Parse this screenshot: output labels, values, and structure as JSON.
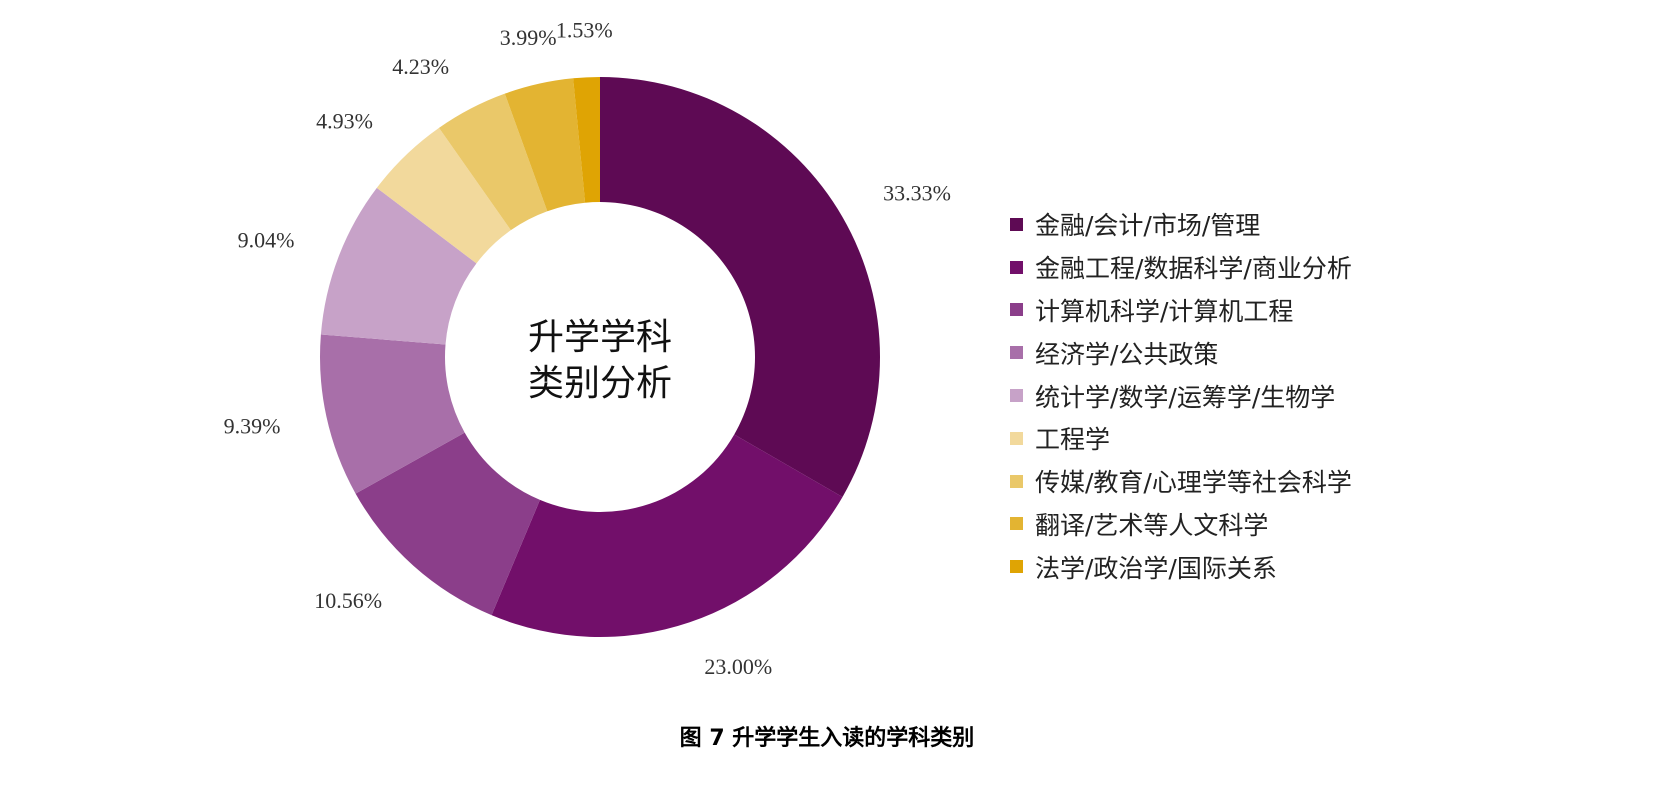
{
  "chart_data": {
    "type": "pie",
    "donut": true,
    "center_label": [
      "升学学科",
      "类别分析"
    ],
    "categories": [
      "金融/会计/市场/管理",
      "金融工程/数据科学/商业分析",
      "计算机科学/计算机工程",
      "经济学/公共政策",
      "统计学/数学/运筹学/生物学",
      "工程学",
      "传媒/教育/心理学等社会科学",
      "翻译/艺术等人文科学",
      "法学/政治学/国际关系"
    ],
    "values": [
      33.33,
      23.0,
      10.56,
      9.39,
      9.04,
      4.93,
      4.23,
      3.99,
      1.53
    ],
    "value_labels": [
      "33.33%",
      "23.00%",
      "10.56%",
      "9.39%",
      "9.04%",
      "4.93%",
      "4.23%",
      "3.99%",
      "1.53%"
    ],
    "colors": [
      "#5e0a54",
      "#720f6a",
      "#8b3e8a",
      "#a86fa9",
      "#c7a2c8",
      "#f2d99c",
      "#eac869",
      "#e3b432",
      "#dfa404"
    ],
    "legend_position": "right"
  },
  "caption": "图 7  升学学生入读的学科类别"
}
